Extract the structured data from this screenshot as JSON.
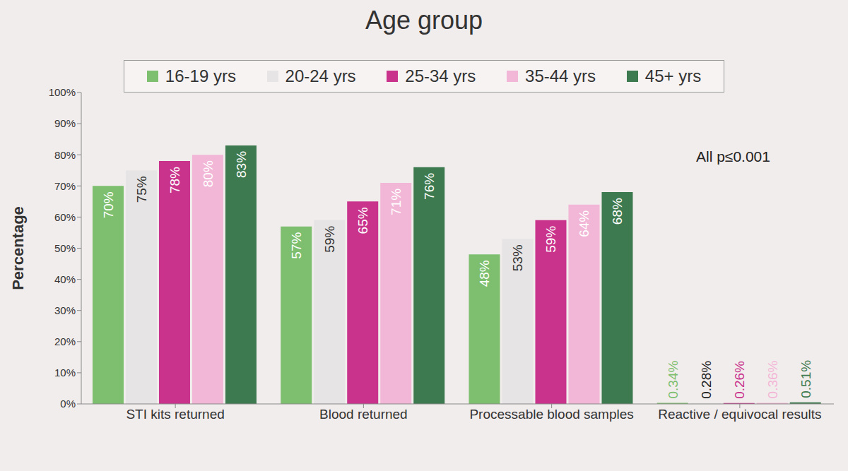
{
  "chart_data": {
    "type": "bar",
    "title": "Age group",
    "y_label": "Percentage",
    "annotation": "All p≤0.001",
    "categories": [
      "STI kits returned",
      "Blood returned",
      "Processable blood samples",
      "Reactive / equivocal results"
    ],
    "series": [
      {
        "name": "16-19 yrs",
        "color": "#7dbf6e",
        "values": [
          70,
          57,
          48,
          0.34
        ],
        "value_labels": [
          "70%",
          "57%",
          "48%",
          "0.34%"
        ]
      },
      {
        "name": "20-24 yrs",
        "color": "#e6e4e4",
        "values": [
          75,
          59,
          53,
          0.28
        ],
        "value_labels": [
          "75%",
          "59%",
          "53%",
          "0.28%"
        ]
      },
      {
        "name": "25-34 yrs",
        "color": "#c9338c",
        "values": [
          78,
          65,
          59,
          0.26
        ],
        "value_labels": [
          "78%",
          "65%",
          "59%",
          "0.26%"
        ]
      },
      {
        "name": "35-44 yrs",
        "color": "#f2b6d6",
        "values": [
          80,
          71,
          64,
          0.36
        ],
        "value_labels": [
          "80%",
          "71%",
          "64%",
          "0.36%"
        ]
      },
      {
        "name": "45+ yrs",
        "color": "#3e7a4f",
        "values": [
          83,
          76,
          68,
          0.51
        ],
        "value_labels": [
          "83%",
          "76%",
          "68%",
          "0.51%"
        ]
      }
    ],
    "ylim": [
      0,
      100
    ],
    "yticks": [
      {
        "value": 0,
        "label": "0%"
      },
      {
        "value": 10,
        "label": "10%"
      },
      {
        "value": 20,
        "label": "20%"
      },
      {
        "value": 30,
        "label": "30%"
      },
      {
        "value": 40,
        "label": "40%"
      },
      {
        "value": 50,
        "label": "50%"
      },
      {
        "value": 60,
        "label": "60%"
      },
      {
        "value": 70,
        "label": "70%"
      },
      {
        "value": 80,
        "label": "80%"
      },
      {
        "value": 90,
        "label": "90%"
      },
      {
        "value": 100,
        "label": "100%"
      }
    ],
    "grid": false,
    "legend": "top",
    "data_labels": true
  }
}
